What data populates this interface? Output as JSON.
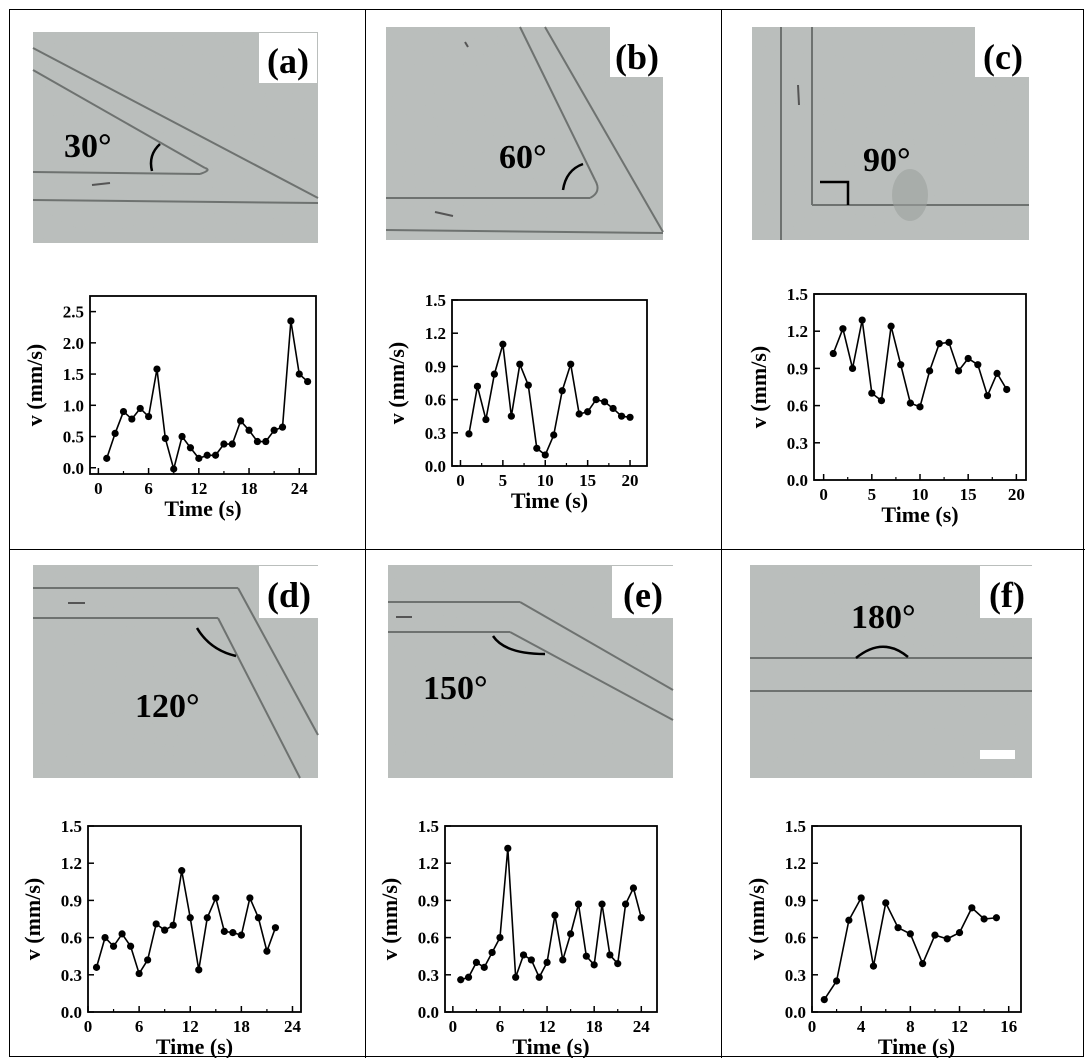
{
  "colors": {
    "photo_background": "#b9bdbb",
    "channel_wall": "#6e7270",
    "data_line": "#000000",
    "grid_line": "#000000"
  },
  "panels": [
    {
      "id": "a",
      "label": "(a)",
      "angle_label": "30°"
    },
    {
      "id": "b",
      "label": "(b)",
      "angle_label": "60°"
    },
    {
      "id": "c",
      "label": "(c)",
      "angle_label": "90°"
    },
    {
      "id": "d",
      "label": "(d)",
      "angle_label": "120°"
    },
    {
      "id": "e",
      "label": "(e)",
      "angle_label": "150°"
    },
    {
      "id": "f",
      "label": "(f)",
      "angle_label": "180°"
    }
  ],
  "chart_data": [
    {
      "panel": "a",
      "type": "line",
      "xlabel": "Time (s)",
      "ylabel": "v (mm/s)",
      "xlim": [
        -1,
        26
      ],
      "ylim": [
        -0.1,
        2.75
      ],
      "xticks": [
        0,
        6,
        12,
        18,
        24
      ],
      "yticks": [
        0.0,
        0.5,
        1.0,
        1.5,
        2.0,
        2.5
      ],
      "series": [
        {
          "x": [
            1,
            2,
            3,
            4,
            5,
            6,
            7,
            8,
            9,
            10,
            11,
            12,
            13,
            14,
            15,
            16,
            17,
            18,
            19,
            20,
            21,
            22,
            23,
            24,
            25
          ],
          "y": [
            0.15,
            0.55,
            0.9,
            0.78,
            0.95,
            0.82,
            1.58,
            0.47,
            -0.02,
            0.5,
            0.32,
            0.15,
            0.2,
            0.2,
            0.38,
            0.38,
            0.75,
            0.6,
            0.42,
            0.42,
            0.6,
            0.65,
            2.35,
            1.5,
            1.38
          ]
        }
      ]
    },
    {
      "panel": "b",
      "type": "line",
      "xlabel": "Time (s)",
      "ylabel": "v (mm/s)",
      "xlim": [
        -1,
        22
      ],
      "ylim": [
        0.0,
        1.5
      ],
      "xticks": [
        0,
        5,
        10,
        15,
        20
      ],
      "yticks": [
        0.0,
        0.3,
        0.6,
        0.9,
        1.2,
        1.5
      ],
      "series": [
        {
          "x": [
            1,
            2,
            3,
            4,
            5,
            6,
            7,
            8,
            9,
            10,
            11,
            12,
            13,
            14,
            15,
            16,
            17,
            18,
            19,
            20
          ],
          "y": [
            0.29,
            0.72,
            0.42,
            0.83,
            1.1,
            0.45,
            0.92,
            0.73,
            0.16,
            0.1,
            0.28,
            0.68,
            0.92,
            0.47,
            0.49,
            0.6,
            0.58,
            0.52,
            0.45,
            0.44
          ]
        }
      ]
    },
    {
      "panel": "c",
      "type": "line",
      "xlabel": "Time (s)",
      "ylabel": "v (mm/s)",
      "xlim": [
        -1,
        21
      ],
      "ylim": [
        0.0,
        1.5
      ],
      "xticks": [
        0,
        5,
        10,
        15,
        20
      ],
      "yticks": [
        0.0,
        0.3,
        0.6,
        0.9,
        1.2,
        1.5
      ],
      "series": [
        {
          "x": [
            1,
            2,
            3,
            4,
            5,
            6,
            7,
            8,
            9,
            10,
            11,
            12,
            13,
            14,
            15,
            16,
            17,
            18,
            19
          ],
          "y": [
            1.02,
            1.22,
            0.9,
            1.29,
            0.7,
            0.64,
            1.24,
            0.93,
            0.62,
            0.59,
            0.88,
            1.1,
            1.11,
            0.88,
            0.98,
            0.93,
            0.68,
            0.86,
            0.73
          ]
        }
      ]
    },
    {
      "panel": "d",
      "type": "line",
      "xlabel": "Time (s)",
      "ylabel": "v (mm/s)",
      "xlim": [
        0,
        25
      ],
      "ylim": [
        0.0,
        1.5
      ],
      "xticks": [
        0,
        6,
        12,
        18,
        24
      ],
      "yticks": [
        0.0,
        0.3,
        0.6,
        0.9,
        1.2,
        1.5
      ],
      "series": [
        {
          "x": [
            1,
            2,
            3,
            4,
            5,
            6,
            7,
            8,
            9,
            10,
            11,
            12,
            13,
            14,
            15,
            16,
            17,
            18,
            19,
            20,
            21,
            22
          ],
          "y": [
            0.36,
            0.6,
            0.53,
            0.63,
            0.53,
            0.31,
            0.42,
            0.71,
            0.66,
            0.7,
            1.14,
            0.76,
            0.34,
            0.76,
            0.92,
            0.65,
            0.64,
            0.62,
            0.92,
            0.76,
            0.49,
            0.68
          ]
        }
      ]
    },
    {
      "panel": "e",
      "type": "line",
      "xlabel": "Time (s)",
      "ylabel": "v (mm/s)",
      "xlim": [
        -1,
        26
      ],
      "ylim": [
        0.0,
        1.5
      ],
      "xticks": [
        0,
        6,
        12,
        18,
        24
      ],
      "yticks": [
        0.0,
        0.3,
        0.6,
        0.9,
        1.2,
        1.5
      ],
      "series": [
        {
          "x": [
            1,
            2,
            3,
            4,
            5,
            6,
            7,
            8,
            9,
            10,
            11,
            12,
            13,
            14,
            15,
            16,
            17,
            18,
            19,
            20,
            21,
            22,
            23,
            24
          ],
          "y": [
            0.26,
            0.28,
            0.4,
            0.36,
            0.48,
            0.6,
            1.32,
            0.28,
            0.46,
            0.42,
            0.28,
            0.4,
            0.78,
            0.42,
            0.63,
            0.87,
            0.45,
            0.38,
            0.87,
            0.46,
            0.39,
            0.87,
            1.0,
            0.76
          ]
        }
      ]
    },
    {
      "panel": "f",
      "type": "line",
      "xlabel": "Time (s)",
      "ylabel": "v (mm/s)",
      "xlim": [
        0,
        17
      ],
      "ylim": [
        0.0,
        1.5
      ],
      "xticks": [
        0,
        4,
        8,
        12,
        16
      ],
      "yticks": [
        0.0,
        0.3,
        0.6,
        0.9,
        1.2,
        1.5
      ],
      "series": [
        {
          "x": [
            1,
            2,
            3,
            4,
            5,
            6,
            7,
            8,
            9,
            10,
            11,
            12,
            13,
            14,
            15
          ],
          "y": [
            0.1,
            0.25,
            0.74,
            0.92,
            0.37,
            0.88,
            0.68,
            0.63,
            0.39,
            0.62,
            0.59,
            0.64,
            0.84,
            0.75,
            0.76
          ]
        }
      ]
    }
  ]
}
